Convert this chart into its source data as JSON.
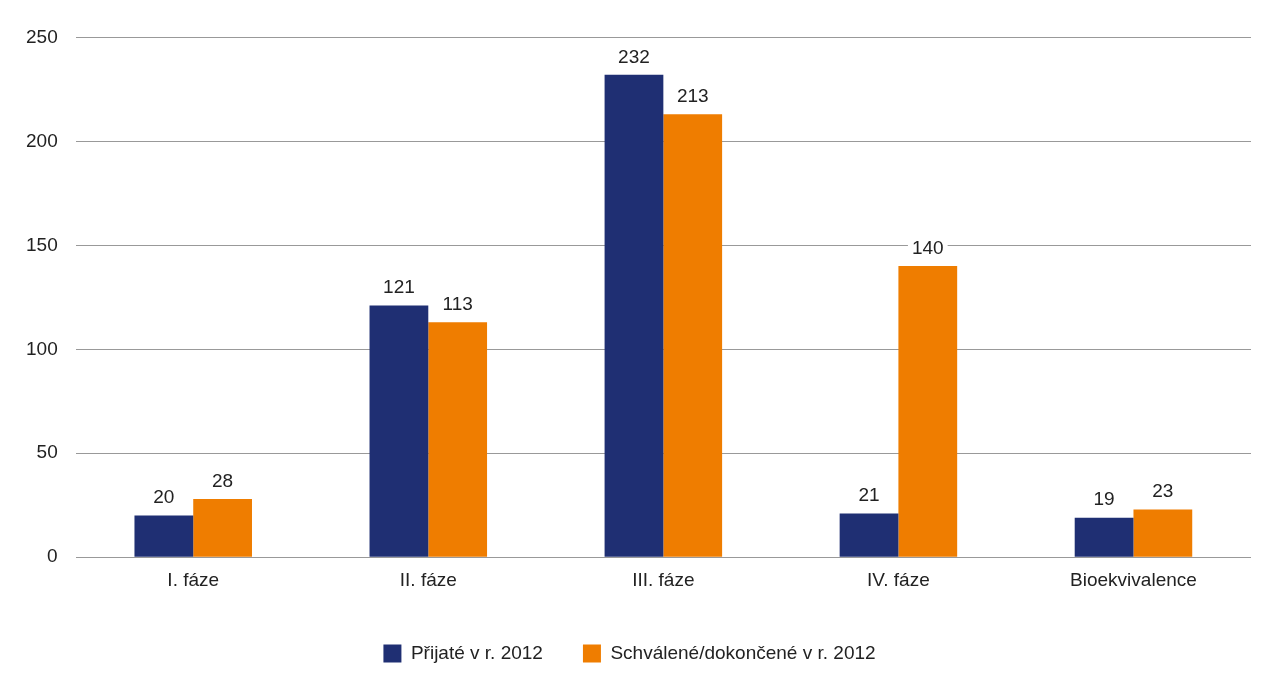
{
  "chart_data": {
    "type": "bar",
    "categories": [
      "I. fáze",
      "II. fáze",
      "III. fáze",
      "IV. fáze",
      "Bioekvivalence"
    ],
    "series": [
      {
        "name": "Přijaté v r. 2012",
        "color": "#1f2f73",
        "values": [
          20,
          121,
          232,
          21,
          19
        ]
      },
      {
        "name": "Schválené/dokončené v r. 2012",
        "color": "#ef7d00",
        "values": [
          28,
          113,
          213,
          140,
          23
        ]
      }
    ],
    "ylim": [
      0,
      250
    ],
    "yticks": [
      0,
      50,
      100,
      150,
      200,
      250
    ],
    "grid": "y",
    "legend": "bottom",
    "data_labels": true
  }
}
